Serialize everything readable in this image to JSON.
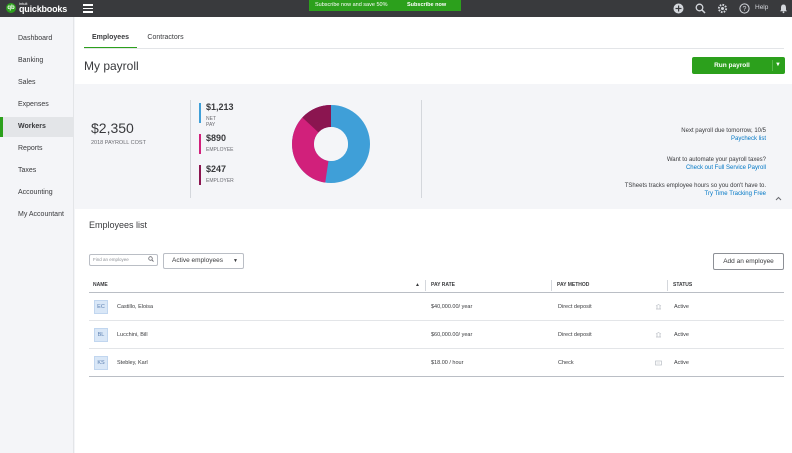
{
  "app": {
    "logo_small": "intuit",
    "logo_text": "quickbooks",
    "logo_mark": "qb",
    "promo_text": "Subscribe now and save 50%",
    "promo_button": "Subscribe now",
    "help_label": "Help"
  },
  "sidebar": {
    "items": [
      {
        "label": "Dashboard"
      },
      {
        "label": "Banking"
      },
      {
        "label": "Sales"
      },
      {
        "label": "Expenses"
      },
      {
        "label": "Workers"
      },
      {
        "label": "Reports"
      },
      {
        "label": "Taxes"
      },
      {
        "label": "Accounting"
      },
      {
        "label": "My Accountant"
      }
    ],
    "active": "Workers"
  },
  "tabs": [
    {
      "label": "Employees",
      "active": true
    },
    {
      "label": "Contractors",
      "active": false
    }
  ],
  "page": {
    "title": "My payroll",
    "run_payroll_label": "Run payroll",
    "run_payroll_arrow": "▼"
  },
  "summary": {
    "total": "$2,350",
    "total_label": "2018 PAYROLL COST",
    "metrics": [
      {
        "amount": "$1,213",
        "label": "NET PAY",
        "color": "#3f9fd8"
      },
      {
        "amount": "$890",
        "label": "EMPLOYEE",
        "color": "#d1207b"
      },
      {
        "amount": "$247",
        "label": "EMPLOYER",
        "color": "#8b1550"
      }
    ],
    "donut_colors": {
      "net_pay": "#3f9fd8",
      "employee": "#d1207b",
      "employer": "#8b1550"
    },
    "info": [
      {
        "text": "Next payroll due tomorrow, 10/5",
        "link": "Paycheck list"
      },
      {
        "text": "Want to automate your payroll taxes?",
        "link": "Check out Full Service Payroll"
      },
      {
        "text": "TSheets tracks employee hours so you don't have to.",
        "link": "Try Time Tracking Free"
      }
    ],
    "collapse_icon": "chevron-up-icon"
  },
  "employees": {
    "title": "Employees list",
    "search_placeholder": "Find an employee",
    "filter_value": "Active employees",
    "add_button": "Add an employee",
    "columns": [
      "NAME",
      "PAY RATE",
      "PAY METHOD",
      "STATUS"
    ],
    "sort_indicator": "▲",
    "rows": [
      {
        "initials": "EC",
        "name": "Castillo, Eloisa",
        "pay_rate": "$40,000.00/ year",
        "pay_method": "Direct deposit",
        "status": "Active"
      },
      {
        "initials": "BL",
        "name": "Lucchini, Bill",
        "pay_rate": "$60,000.00/ year",
        "pay_method": "Direct deposit",
        "status": "Active"
      },
      {
        "initials": "KS",
        "name": "Stebley, Karl",
        "pay_rate": "$18.00 / hour",
        "pay_method": "Check",
        "status": "Active"
      }
    ]
  },
  "colors": {
    "brand_green": "#2ca01c",
    "topbar": "#393a3d",
    "link_blue": "#0077c5"
  }
}
